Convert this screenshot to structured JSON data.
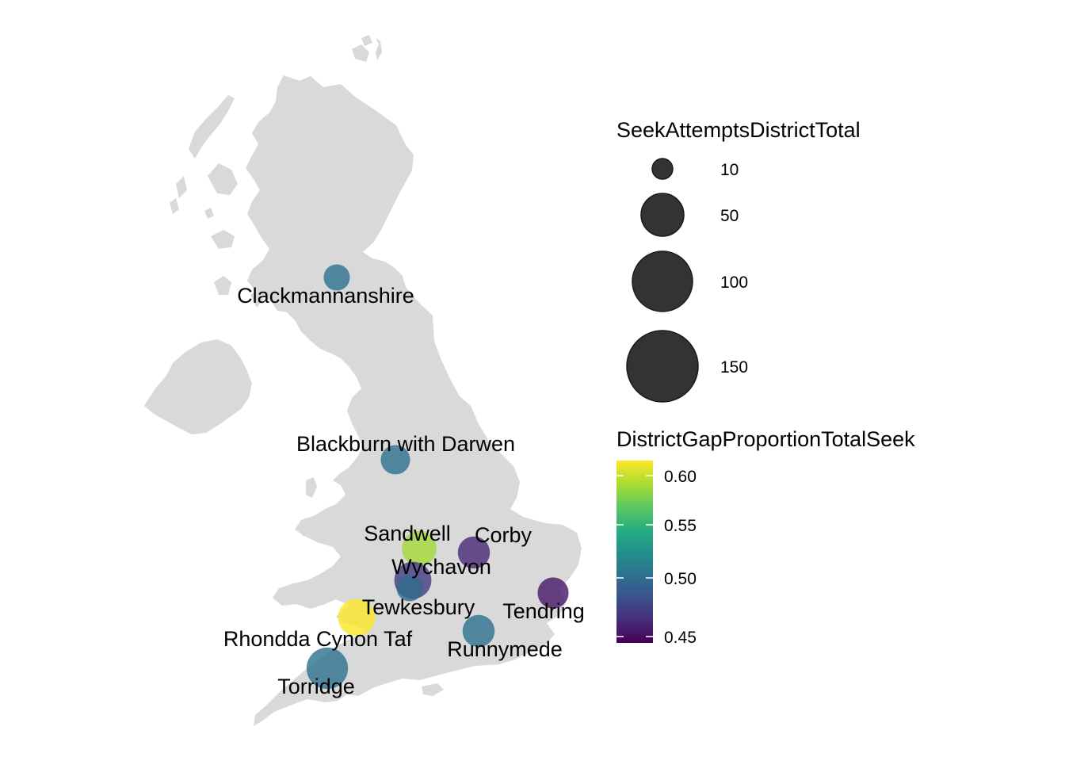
{
  "chart_data": {
    "type": "bubble-map",
    "region": "Great Britain",
    "size_legend": {
      "title": "SeekAttemptsDistrictTotal",
      "breaks": [
        10,
        50,
        100,
        150
      ],
      "labels": [
        "10",
        "50",
        "100",
        "150"
      ]
    },
    "color_legend": {
      "title": "DistrictGapProportionTotalSeek",
      "range": [
        0.44,
        0.615
      ],
      "breaks": [
        0.45,
        0.5,
        0.55,
        0.6
      ],
      "labels": [
        "0.45",
        "0.50",
        "0.55",
        "0.60"
      ],
      "colormap": "viridis"
    },
    "points": [
      {
        "name": "Clackmannanshire",
        "seek_total": 20,
        "gap_proportion": 0.505,
        "label": "Clackmannanshire"
      },
      {
        "name": "Blackburn with Darwen",
        "seek_total": 25,
        "gap_proportion": 0.505,
        "label": "Blackburn with Darwen"
      },
      {
        "name": "Sandwell",
        "seek_total": 35,
        "gap_proportion": 0.59,
        "label": "Sandwell"
      },
      {
        "name": "Corby",
        "seek_total": 30,
        "gap_proportion": 0.46,
        "label": "Corby"
      },
      {
        "name": "Wychavon",
        "seek_total": 40,
        "gap_proportion": 0.47,
        "label": "Wychavon"
      },
      {
        "name": "Tewkesbury",
        "seek_total": 20,
        "gap_proportion": 0.5,
        "label": "Tewkesbury"
      },
      {
        "name": "Tendring",
        "seek_total": 28,
        "gap_proportion": 0.45,
        "label": "Tendring"
      },
      {
        "name": "Rhondda Cynon Taf",
        "seek_total": 40,
        "gap_proportion": 0.615,
        "label": "Rhondda Cynon Taf"
      },
      {
        "name": "Runnymede",
        "seek_total": 30,
        "gap_proportion": 0.505,
        "label": "Runnymede"
      },
      {
        "name": "Torridge",
        "seek_total": 50,
        "gap_proportion": 0.505,
        "label": "Torridge"
      }
    ]
  }
}
